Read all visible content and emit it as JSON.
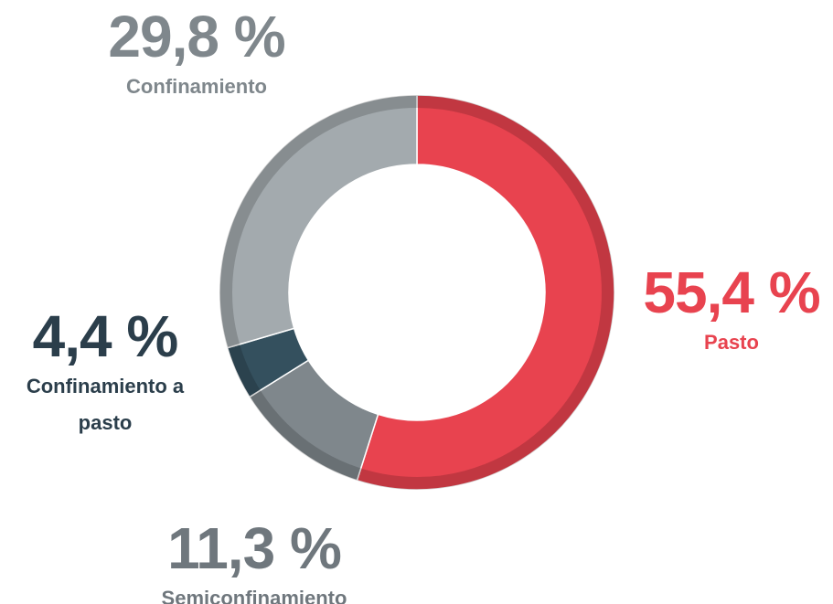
{
  "chart_data": {
    "type": "donut",
    "categories": [
      "Pasto",
      "Semiconfinamiento",
      "Confinamiento a pasto",
      "Confinamiento"
    ],
    "values": [
      55.4,
      11.3,
      4.4,
      29.8
    ],
    "value_labels": [
      "55,4 %",
      "11,3 %",
      "4,4 %",
      "29,8 %"
    ],
    "colors": [
      "#e8434f",
      "#7f878c",
      "#34505e",
      "#a3aaae"
    ]
  }
}
